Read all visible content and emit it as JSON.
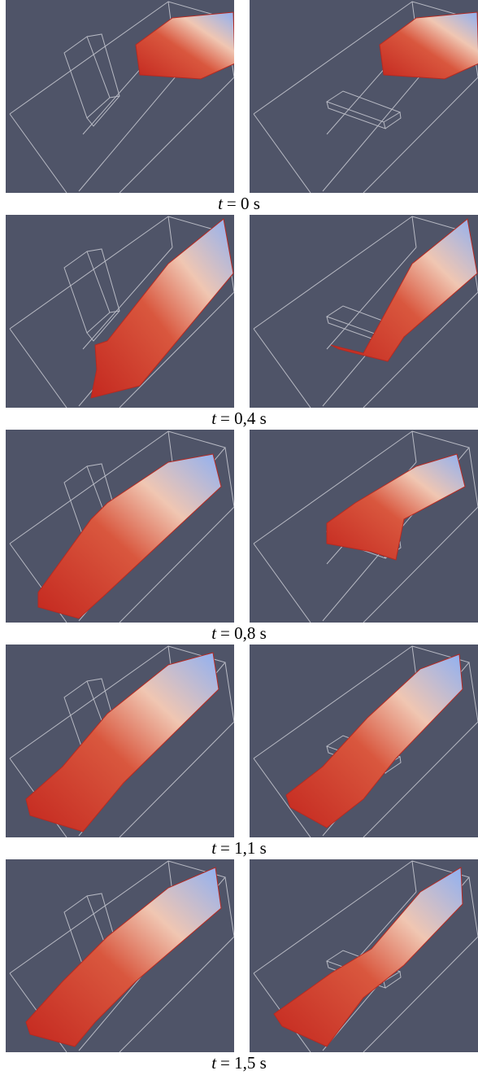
{
  "figure": {
    "rows": [
      {
        "symbol": "t",
        "text": "= 0 s"
      },
      {
        "symbol": "t",
        "text": "= 0,4 s"
      },
      {
        "symbol": "t",
        "text": "= 0,8 s"
      },
      {
        "symbol": "t",
        "text": "= 1,1 s"
      },
      {
        "symbol": "t",
        "text": "= 1,5 s"
      }
    ]
  }
}
